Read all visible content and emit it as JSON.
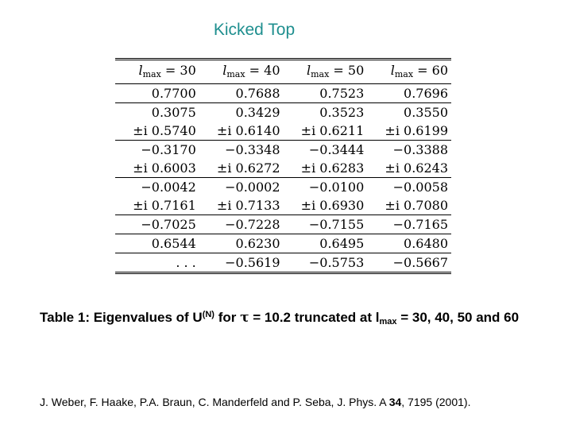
{
  "slide": {
    "title": "Kicked Top"
  },
  "table": {
    "header_var": "l",
    "header_sub": "max",
    "columns": [
      "30",
      "40",
      "50",
      "60"
    ],
    "rows": [
      [
        "0.7700",
        "0.7688",
        "0.7523",
        "0.7696"
      ],
      [
        "0.3075",
        "0.3429",
        "0.3523",
        "0.3550"
      ],
      [
        "±i 0.5740",
        "±i 0.6140",
        "±i 0.6211",
        "±i 0.6199"
      ],
      [
        "−0.3170",
        "−0.3348",
        "−0.3444",
        "−0.3388"
      ],
      [
        "±i 0.6003",
        "±i 0.6272",
        "±i 0.6283",
        "±i 0.6243"
      ],
      [
        "−0.0042",
        "−0.0002",
        "−0.0100",
        "−0.0058"
      ],
      [
        "±i 0.7161",
        "±i 0.7133",
        "±i 0.6930",
        "±i 0.7080"
      ],
      [
        "−0.7025",
        "−0.7228",
        "−0.7155",
        "−0.7165"
      ],
      [
        "0.6544",
        "0.6230",
        "0.6495",
        "0.6480"
      ],
      [
        ". . .",
        "−0.5619",
        "−0.5753",
        "−0.5667"
      ]
    ]
  },
  "caption": {
    "part1": "Table 1: Eigenvalues of U",
    "sup": "(N)",
    "part2": " for ",
    "tau": "τ",
    "part3": " = 10.2 truncated at l",
    "sub": "max",
    "part4": " = 30, 40, 50 and 60"
  },
  "citation": {
    "part1": "J. Weber, F. Haake, P.A. Braun, C. Manderfeld and P. Seba, J. Phys.  A ",
    "volume": "34",
    "part2": ", 7195 (2001)."
  }
}
